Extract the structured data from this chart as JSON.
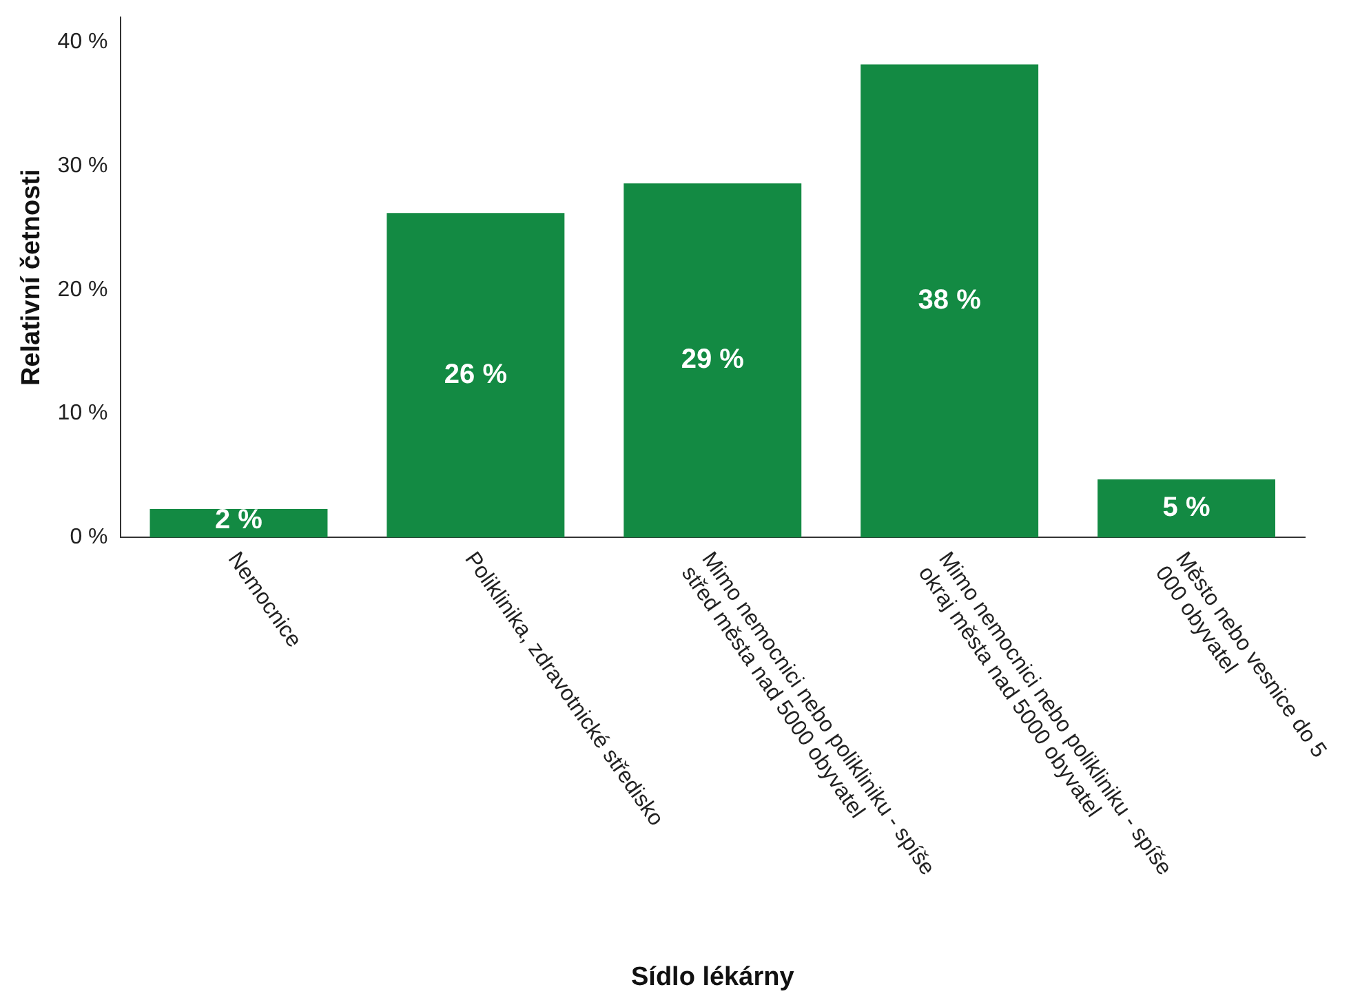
{
  "chart_data": {
    "type": "bar",
    "xlabel": "Sídlo lékárny",
    "ylabel": "Relativní četnosti",
    "categories": [
      "Nemocnice",
      "Poliklinika, zdravotnické středisko",
      "Mimo nemocnici nebo polikliniku - spíše střed města nad 5000 obyvatel",
      "Mimo nemocnici nebo polikliniku - spíše okraj města nad 5000 obyvatel",
      "Město nebo vesnice do 5 000 obyvatel"
    ],
    "values": [
      2.3,
      26.2,
      28.6,
      38.2,
      4.7
    ],
    "value_labels": [
      "2 %",
      "26 %",
      "29 %",
      "38 %",
      "5 %"
    ],
    "color": "#138a43",
    "ylim": [
      0,
      42
    ],
    "yticks": [
      {
        "value": 0,
        "label": "0 %"
      },
      {
        "value": 10,
        "label": "10 %"
      },
      {
        "value": 20,
        "label": "20 %"
      },
      {
        "value": 30,
        "label": "30 %"
      },
      {
        "value": 40,
        "label": "40 %"
      }
    ],
    "grid": false,
    "legend": false
  }
}
